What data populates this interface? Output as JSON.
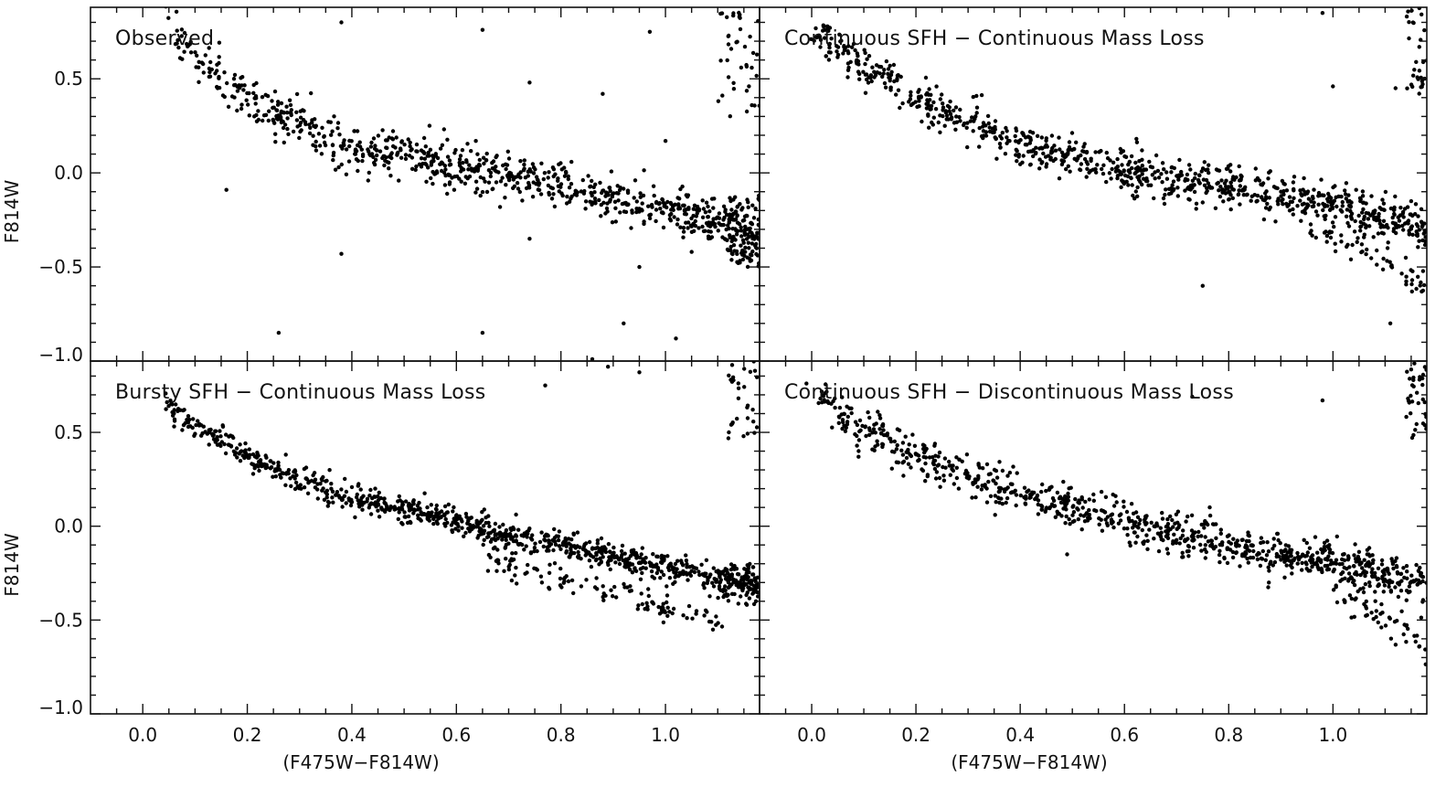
{
  "figure": {
    "xlabel": "(F475W−F814W)",
    "ylabel": "F814W",
    "point_color": "#000000",
    "axis_color": "#111111"
  },
  "chart_data": [
    {
      "type": "scatter",
      "title": "Observed",
      "xlabel": "",
      "ylabel": "F814W",
      "xlim": [
        -0.1,
        1.18
      ],
      "ylim": [
        0.88,
        -1.0
      ],
      "xticks": [
        0.0,
        0.2,
        0.4,
        0.6,
        0.8,
        1.0
      ],
      "xtick_labels": [
        "",
        "",
        "",
        "",
        "",
        ""
      ],
      "yticks": [
        -1.0,
        -0.5,
        0.0,
        0.5
      ],
      "ytick_labels": [
        "−1.0",
        "−0.5",
        "0.0",
        "0.5"
      ],
      "sequence_points": [
        [
          0.04,
          0.85
        ],
        [
          0.06,
          0.77
        ],
        [
          0.08,
          0.7
        ],
        [
          0.1,
          0.64
        ],
        [
          0.13,
          0.55
        ],
        [
          0.16,
          0.48
        ],
        [
          0.2,
          0.4
        ],
        [
          0.25,
          0.34
        ],
        [
          0.3,
          0.28
        ],
        [
          0.35,
          0.2
        ],
        [
          0.4,
          0.13
        ],
        [
          0.45,
          0.09
        ],
        [
          0.5,
          0.1
        ],
        [
          0.55,
          0.06
        ],
        [
          0.6,
          0.03
        ],
        [
          0.65,
          0.02
        ],
        [
          0.7,
          0.0
        ],
        [
          0.75,
          -0.03
        ],
        [
          0.8,
          -0.07
        ],
        [
          0.85,
          -0.11
        ],
        [
          0.9,
          -0.14
        ],
        [
          0.95,
          -0.16
        ],
        [
          1.0,
          -0.19
        ],
        [
          1.05,
          -0.22
        ],
        [
          1.1,
          -0.26
        ],
        [
          1.15,
          -0.3
        ],
        [
          1.18,
          -0.33
        ]
      ],
      "sequence_width": 0.06,
      "sequence_count": 820,
      "upper_branch": [],
      "cluster": {
        "x": [
          1.12,
          1.18
        ],
        "y": [
          -0.12,
          -0.5
        ],
        "count": 90
      },
      "column": {
        "x": [
          1.1,
          1.18
        ],
        "y": [
          0.3,
          0.88
        ],
        "count": 40
      },
      "outliers": [
        [
          0.26,
          -0.85
        ],
        [
          0.65,
          -0.85
        ],
        [
          0.38,
          -0.43
        ],
        [
          0.16,
          -0.09
        ],
        [
          0.86,
          -0.99
        ],
        [
          0.74,
          -0.35
        ],
        [
          0.95,
          -0.5
        ],
        [
          0.88,
          0.42
        ],
        [
          0.74,
          0.48
        ],
        [
          0.65,
          0.76
        ],
        [
          0.38,
          0.8
        ],
        [
          0.97,
          0.75
        ],
        [
          1.02,
          -0.88
        ],
        [
          0.92,
          -0.8
        ],
        [
          1.0,
          0.17
        ],
        [
          1.05,
          -0.42
        ]
      ],
      "seed": 11
    },
    {
      "type": "scatter",
      "title": "Continuous SFH − Continuous Mass Loss",
      "xlabel": "",
      "ylabel": "",
      "xlim": [
        -0.1,
        1.18
      ],
      "ylim": [
        0.88,
        -1.0
      ],
      "xticks": [
        0.0,
        0.2,
        0.4,
        0.6,
        0.8,
        1.0
      ],
      "xtick_labels": [
        "",
        "",
        "",
        "",
        "",
        ""
      ],
      "yticks": [
        -1.0,
        -0.5,
        0.0,
        0.5
      ],
      "ytick_labels": [
        "",
        "",
        "",
        ""
      ],
      "sequence_points": [
        [
          0.0,
          0.8
        ],
        [
          0.03,
          0.72
        ],
        [
          0.07,
          0.63
        ],
        [
          0.12,
          0.52
        ],
        [
          0.18,
          0.43
        ],
        [
          0.25,
          0.33
        ],
        [
          0.32,
          0.24
        ],
        [
          0.4,
          0.15
        ],
        [
          0.5,
          0.07
        ],
        [
          0.6,
          0.01
        ],
        [
          0.7,
          -0.04
        ],
        [
          0.8,
          -0.08
        ],
        [
          0.9,
          -0.12
        ],
        [
          1.0,
          -0.17
        ],
        [
          1.1,
          -0.24
        ],
        [
          1.18,
          -0.3
        ]
      ],
      "sequence_width": 0.055,
      "sequence_count": 900,
      "upper_branch": [
        [
          0.95,
          -0.3
        ],
        [
          1.05,
          -0.38
        ],
        [
          1.12,
          -0.5
        ],
        [
          1.18,
          -0.62
        ]
      ],
      "upper_count": 60,
      "cluster": null,
      "column": {
        "x": [
          1.14,
          1.18
        ],
        "y": [
          0.4,
          0.88
        ],
        "count": 30
      },
      "outliers": [
        [
          0.75,
          -0.6
        ],
        [
          1.11,
          -0.8
        ],
        [
          1.0,
          0.46
        ],
        [
          1.12,
          0.45
        ],
        [
          0.98,
          0.85
        ]
      ],
      "seed": 23
    },
    {
      "type": "scatter",
      "title": "Bursty SFH − Continuous Mass Loss",
      "xlabel": "(F475W−F814W)",
      "ylabel": "F814W",
      "xlim": [
        -0.1,
        1.18
      ],
      "ylim": [
        0.88,
        -1.0
      ],
      "xticks": [
        0.0,
        0.2,
        0.4,
        0.6,
        0.8,
        1.0
      ],
      "xtick_labels": [
        "0.0",
        "0.2",
        "0.4",
        "0.6",
        "0.8",
        "1.0"
      ],
      "yticks": [
        -1.0,
        -0.5,
        0.0,
        0.5
      ],
      "ytick_labels": [
        "−1.0",
        "−0.5",
        "0.0",
        "0.5"
      ],
      "sequence_points": [
        [
          0.04,
          0.65
        ],
        [
          0.08,
          0.56
        ],
        [
          0.12,
          0.5
        ],
        [
          0.16,
          0.45
        ],
        [
          0.22,
          0.35
        ],
        [
          0.3,
          0.25
        ],
        [
          0.4,
          0.15
        ],
        [
          0.5,
          0.09
        ],
        [
          0.6,
          0.03
        ],
        [
          0.7,
          -0.05
        ],
        [
          0.8,
          -0.1
        ],
        [
          0.9,
          -0.16
        ],
        [
          1.0,
          -0.21
        ],
        [
          1.1,
          -0.27
        ],
        [
          1.18,
          -0.33
        ]
      ],
      "sequence_width": 0.035,
      "sequence_count": 900,
      "upper_branch": [
        [
          0.65,
          -0.15
        ],
        [
          0.75,
          -0.25
        ],
        [
          0.85,
          -0.31
        ],
        [
          0.95,
          -0.39
        ],
        [
          1.05,
          -0.46
        ],
        [
          1.12,
          -0.55
        ]
      ],
      "upper_count": 120,
      "cluster": {
        "x": [
          1.1,
          1.18
        ],
        "y": [
          -0.2,
          -0.42
        ],
        "count": 80
      },
      "column": {
        "x": [
          1.12,
          1.18
        ],
        "y": [
          0.45,
          0.88
        ],
        "count": 30
      },
      "outliers": [
        [
          0.77,
          0.75
        ],
        [
          0.95,
          0.82
        ],
        [
          0.89,
          0.85
        ]
      ],
      "seed": 37
    },
    {
      "type": "scatter",
      "title": "Continuous SFH − Discontinuous Mass Loss",
      "xlabel": "(F475W−F814W)",
      "ylabel": "",
      "xlim": [
        -0.1,
        1.18
      ],
      "ylim": [
        0.88,
        -1.0
      ],
      "xticks": [
        0.0,
        0.2,
        0.4,
        0.6,
        0.8,
        1.0
      ],
      "xtick_labels": [
        "0.0",
        "0.2",
        "0.4",
        "0.6",
        "0.8",
        "1.0"
      ],
      "yticks": [
        -1.0,
        -0.5,
        0.0,
        0.5
      ],
      "ytick_labels": [
        "",
        "",
        "",
        ""
      ],
      "sequence_points": [
        [
          0.01,
          0.72
        ],
        [
          0.05,
          0.62
        ],
        [
          0.1,
          0.52
        ],
        [
          0.15,
          0.45
        ],
        [
          0.2,
          0.38
        ],
        [
          0.3,
          0.27
        ],
        [
          0.4,
          0.17
        ],
        [
          0.5,
          0.1
        ],
        [
          0.6,
          0.03
        ],
        [
          0.7,
          -0.04
        ],
        [
          0.8,
          -0.1
        ],
        [
          0.9,
          -0.15
        ],
        [
          1.0,
          -0.2
        ],
        [
          1.1,
          -0.26
        ],
        [
          1.18,
          -0.32
        ]
      ],
      "sequence_width": 0.055,
      "sequence_count": 900,
      "upper_branch": [
        [
          1.0,
          -0.35
        ],
        [
          1.08,
          -0.45
        ],
        [
          1.14,
          -0.55
        ],
        [
          1.18,
          -0.65
        ]
      ],
      "upper_count": 50,
      "cluster": null,
      "column": {
        "x": [
          1.14,
          1.18
        ],
        "y": [
          0.45,
          0.88
        ],
        "count": 35
      },
      "outliers": [
        [
          0.73,
          0.69
        ],
        [
          0.98,
          0.67
        ],
        [
          0.49,
          -0.15
        ],
        [
          -0.01,
          0.76
        ]
      ],
      "seed": 53
    }
  ]
}
